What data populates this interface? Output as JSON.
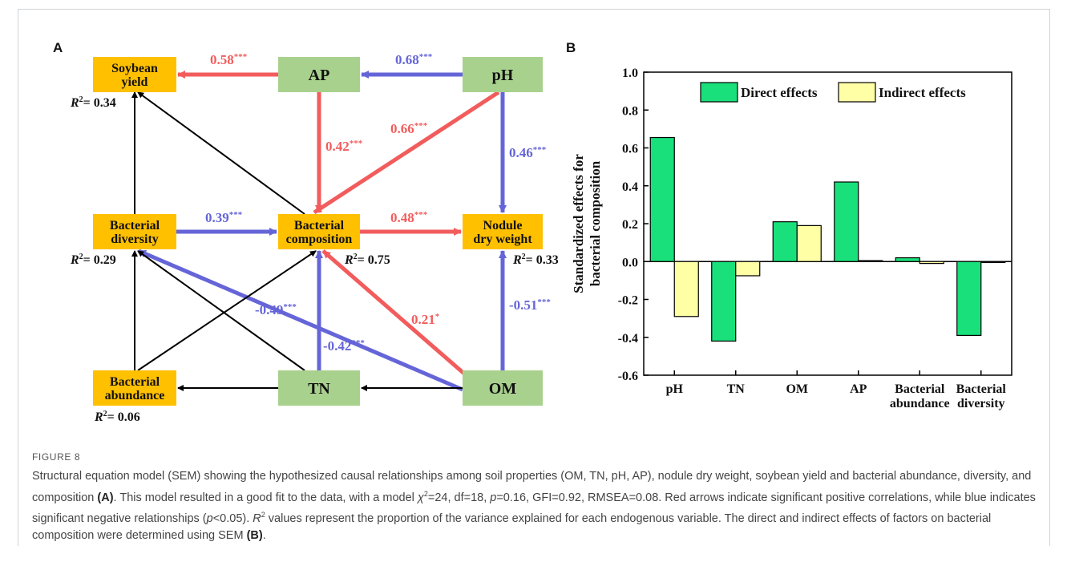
{
  "panel_labels": {
    "a": "A",
    "b": "B"
  },
  "sem": {
    "nodes": [
      {
        "id": "soybean_yield",
        "lines": [
          "Soybean",
          "yield"
        ],
        "kind": "outcome"
      },
      {
        "id": "ap",
        "lines": [
          "AP"
        ],
        "kind": "soil"
      },
      {
        "id": "ph",
        "lines": [
          "pH"
        ],
        "kind": "soil"
      },
      {
        "id": "bacterial_diversity",
        "lines": [
          "Bacterial",
          "diversity"
        ],
        "kind": "outcome"
      },
      {
        "id": "bacterial_composition",
        "lines": [
          "Bacterial",
          "composition"
        ],
        "kind": "outcome"
      },
      {
        "id": "nodule_dry_weight",
        "lines": [
          "Nodule",
          "dry weight"
        ],
        "kind": "outcome"
      },
      {
        "id": "bacterial_abundance",
        "lines": [
          "Bacterial",
          "abundance"
        ],
        "kind": "outcome"
      },
      {
        "id": "tn",
        "lines": [
          "TN"
        ],
        "kind": "soil"
      },
      {
        "id": "om",
        "lines": [
          "OM"
        ],
        "kind": "soil"
      }
    ],
    "r_squared": [
      {
        "node": "soybean_yield",
        "value": "0.34"
      },
      {
        "node": "bacterial_diversity",
        "value": "0.29"
      },
      {
        "node": "bacterial_composition",
        "value": "0.75"
      },
      {
        "node": "nodule_dry_weight",
        "value": "0.33"
      },
      {
        "node": "bacterial_abundance",
        "value": "0.06"
      }
    ],
    "paths": [
      {
        "from": "ap",
        "to": "soybean_yield",
        "coef": "0.58",
        "sig": "***",
        "sign": "positive"
      },
      {
        "from": "ph",
        "to": "ap",
        "coef": "0.68",
        "sig": "***",
        "sign": "negative"
      },
      {
        "from": "ap",
        "to": "bacterial_composition",
        "coef": "0.42",
        "sig": "***",
        "sign": "positive"
      },
      {
        "from": "ph",
        "to": "bacterial_composition",
        "coef": "0.66",
        "sig": "***",
        "sign": "positive"
      },
      {
        "from": "ph",
        "to": "nodule_dry_weight",
        "coef": "0.46",
        "sig": "***",
        "sign": "negative"
      },
      {
        "from": "bacterial_diversity",
        "to": "bacterial_composition",
        "coef": "0.39",
        "sig": "***",
        "sign": "negative"
      },
      {
        "from": "bacterial_composition",
        "to": "nodule_dry_weight",
        "coef": "0.48",
        "sig": "***",
        "sign": "positive"
      },
      {
        "from": "om",
        "to": "bacterial_diversity",
        "coef": "-0.49",
        "sig": "***",
        "sign": "negative"
      },
      {
        "from": "om",
        "to": "bacterial_composition",
        "coef": "0.21",
        "sig": "*",
        "sign": "positive"
      },
      {
        "from": "om",
        "to": "nodule_dry_weight",
        "coef": "-0.51",
        "sig": "***",
        "sign": "negative"
      },
      {
        "from": "tn",
        "to": "bacterial_composition",
        "coef": "-0.42",
        "sig": "***",
        "sign": "negative"
      },
      {
        "from": "bacterial_diversity",
        "to": "soybean_yield",
        "coef": "",
        "sig": "",
        "sign": "nonsignificant"
      },
      {
        "from": "bacterial_composition",
        "to": "soybean_yield",
        "coef": "",
        "sig": "",
        "sign": "nonsignificant"
      },
      {
        "from": "bacterial_abundance",
        "to": "bacterial_diversity",
        "coef": "",
        "sig": "",
        "sign": "nonsignificant"
      },
      {
        "from": "bacterial_abundance",
        "to": "bacterial_composition",
        "coef": "",
        "sig": "",
        "sign": "nonsignificant"
      },
      {
        "from": "tn",
        "to": "bacterial_diversity",
        "coef": "",
        "sig": "",
        "sign": "nonsignificant"
      },
      {
        "from": "tn",
        "to": "bacterial_abundance",
        "coef": "",
        "sig": "",
        "sign": "nonsignificant"
      },
      {
        "from": "om",
        "to": "tn",
        "coef": "",
        "sig": "",
        "sign": "nonsignificant"
      }
    ]
  },
  "chart_data": {
    "type": "bar",
    "ylabel_lines": [
      "Standardized effects for",
      "bacterial composition"
    ],
    "categories": [
      [
        "pH"
      ],
      [
        "TN"
      ],
      [
        "OM"
      ],
      [
        "AP"
      ],
      [
        "Bacterial",
        "abundance"
      ],
      [
        "Bacterial",
        "diversity"
      ]
    ],
    "series": [
      {
        "name": "Direct effects",
        "values": [
          0.655,
          -0.42,
          0.21,
          0.42,
          0.02,
          -0.39
        ]
      },
      {
        "name": "Indirect effects",
        "values": [
          -0.29,
          -0.075,
          0.19,
          0.005,
          -0.01,
          -0.005
        ]
      }
    ],
    "ylim": [
      -0.6,
      1.0
    ],
    "yticks": [
      "-0.6",
      "-0.4",
      "-0.2",
      "0.0",
      "0.2",
      "0.4",
      "0.6",
      "0.8",
      "1.0"
    ],
    "legend_position": "top"
  },
  "caption": {
    "heading": "FIGURE 8",
    "text": "Structural equation model (SEM) showing the hypothesized causal relationships among soil properties (OM, TN, pH, AP), nodule dry weight, soybean yield and bacterial abundance, diversity, and composition (A). This model resulted in a good fit to the data, with a model χ2=24, df=18, p=0.16, GFI=0.92, RMSEA=0.08. Red arrows indicate significant positive correlations, while blue indicates significant negative relationships (p<0.05). R2 values represent the proportion of the variance explained for each endogenous variable. The direct and indirect effects of factors on bacterial composition were determined using SEM (B)."
  },
  "colors": {
    "outcome_fill": "#ffc000",
    "soil_fill": "#a9d18e",
    "positive": "#f25c5c",
    "negative": "#6565d8",
    "nonsignificant": "#000000",
    "direct_bar": "#19e07a",
    "indirect_bar": "#ffffa6"
  }
}
